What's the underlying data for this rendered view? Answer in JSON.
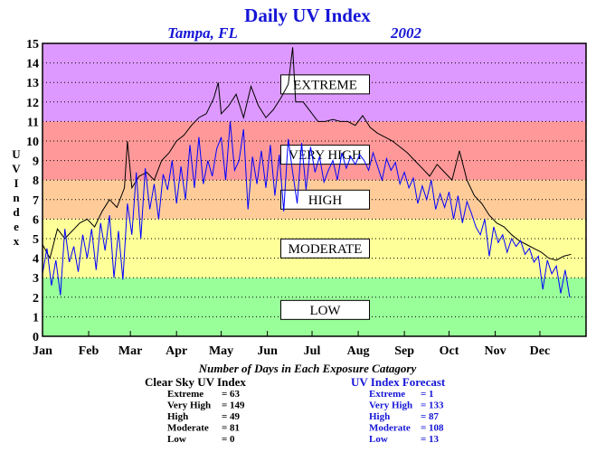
{
  "chart_data": {
    "type": "line",
    "title": "Daily UV Index",
    "subtitle_location": "Tampa, FL",
    "subtitle_year": "2002",
    "ylabel": "UV Index",
    "xlabel": "",
    "ylim": [
      0,
      15
    ],
    "xlim": [
      0,
      365
    ],
    "y_ticks": [
      "0",
      "1",
      "2",
      "3",
      "4",
      "5",
      "6",
      "7",
      "8",
      "9",
      "10",
      "11",
      "12",
      "13",
      "14",
      "15"
    ],
    "x_ticks": [
      "Jan",
      "Feb",
      "Mar",
      "Apr",
      "May",
      "Jun",
      "Jul",
      "Aug",
      "Sep",
      "Oct",
      "Nov",
      "Dec"
    ],
    "month_start_days": [
      0,
      31,
      59,
      90,
      120,
      151,
      181,
      212,
      243,
      273,
      304,
      334
    ],
    "grid": true,
    "bands": [
      {
        "label": "LOW",
        "from": 0,
        "to": 3,
        "color": "#99ff99"
      },
      {
        "label": "MODERATE",
        "from": 3,
        "to": 6,
        "color": "#ffff99"
      },
      {
        "label": "HIGH",
        "from": 6,
        "to": 8,
        "color": "#ffcc99"
      },
      {
        "label": "VERY HIGH",
        "from": 8,
        "to": 11,
        "color": "#ff9999"
      },
      {
        "label": "EXTREME",
        "from": 11,
        "to": 15,
        "color": "#dd99ff"
      }
    ],
    "band_label_y": [
      1.35,
      4.5,
      7.0,
      9.3,
      12.9
    ],
    "series": [
      {
        "name": "Clear Sky UV Index",
        "color": "#000000",
        "x": [
          0,
          5,
          10,
          15,
          20,
          25,
          30,
          35,
          40,
          45,
          50,
          55,
          57,
          60,
          65,
          70,
          75,
          80,
          85,
          90,
          95,
          100,
          105,
          110,
          115,
          118,
          120,
          125,
          130,
          135,
          140,
          145,
          150,
          155,
          160,
          165,
          168,
          170,
          175,
          180,
          185,
          190,
          195,
          200,
          205,
          210,
          215,
          220,
          225,
          230,
          235,
          240,
          245,
          250,
          255,
          260,
          265,
          270,
          275,
          280,
          285,
          290,
          295,
          300,
          305,
          310,
          315,
          320,
          325,
          330,
          335,
          340,
          345,
          350,
          355
        ],
        "y": [
          4.7,
          4.0,
          5.5,
          5.0,
          5.4,
          5.8,
          6.0,
          5.6,
          6.4,
          7.0,
          6.6,
          7.6,
          10.0,
          7.6,
          8.2,
          8.4,
          8.0,
          9.0,
          9.4,
          10.0,
          10.3,
          10.8,
          11.2,
          11.4,
          12.2,
          13.0,
          11.4,
          11.8,
          12.4,
          11.2,
          12.8,
          11.8,
          11.2,
          11.6,
          12.2,
          12.9,
          14.8,
          12.0,
          12.0,
          11.5,
          11.0,
          11.0,
          11.1,
          11.0,
          11.0,
          10.8,
          11.3,
          10.7,
          10.4,
          10.2,
          10.0,
          9.7,
          9.4,
          9.0,
          8.6,
          8.2,
          8.8,
          8.4,
          8.0,
          9.5,
          8.0,
          7.2,
          6.8,
          6.2,
          5.8,
          5.6,
          5.2,
          4.9,
          4.7,
          4.5,
          4.3,
          4.0,
          3.9,
          4.1,
          4.2
        ]
      },
      {
        "name": "UV Index Forecast",
        "color": "#0000ff",
        "x": [
          0,
          3,
          6,
          9,
          12,
          15,
          18,
          21,
          24,
          27,
          30,
          33,
          36,
          39,
          42,
          45,
          48,
          51,
          54,
          57,
          60,
          63,
          66,
          69,
          72,
          75,
          78,
          81,
          84,
          87,
          90,
          93,
          96,
          99,
          102,
          105,
          108,
          111,
          114,
          117,
          120,
          123,
          126,
          129,
          132,
          135,
          138,
          141,
          144,
          147,
          150,
          153,
          156,
          159,
          162,
          165,
          168,
          171,
          174,
          177,
          180,
          183,
          186,
          189,
          192,
          195,
          198,
          201,
          204,
          207,
          210,
          213,
          216,
          219,
          222,
          225,
          228,
          231,
          234,
          237,
          240,
          243,
          246,
          249,
          252,
          255,
          258,
          261,
          264,
          267,
          270,
          273,
          276,
          279,
          282,
          285,
          288,
          291,
          294,
          297,
          300,
          303,
          306,
          309,
          312,
          315,
          318,
          321,
          324,
          327,
          330,
          333,
          336,
          339,
          342,
          345,
          348,
          351,
          354
        ],
        "y": [
          3.2,
          4.5,
          2.6,
          3.9,
          2.1,
          5.5,
          3.8,
          4.6,
          3.3,
          5.2,
          4.0,
          5.5,
          3.4,
          5.8,
          4.4,
          6.2,
          3.0,
          5.4,
          2.9,
          6.8,
          5.2,
          8.4,
          5.0,
          8.6,
          6.5,
          7.8,
          6.0,
          8.3,
          7.5,
          9.0,
          6.8,
          8.7,
          7.0,
          9.8,
          7.6,
          10.2,
          7.8,
          9.0,
          8.2,
          9.6,
          10.2,
          8.0,
          11.0,
          8.5,
          9.0,
          10.6,
          6.5,
          9.2,
          7.8,
          9.5,
          7.6,
          9.8,
          7.2,
          9.3,
          6.4,
          10.1,
          8.4,
          6.8,
          9.9,
          7.5,
          9.7,
          8.4,
          9.2,
          7.9,
          8.5,
          9.0,
          8.0,
          9.4,
          8.6,
          9.2,
          8.8,
          9.3,
          9.0,
          8.5,
          9.4,
          8.7,
          8.0,
          9.1,
          8.5,
          8.9,
          7.8,
          8.4,
          7.6,
          8.1,
          6.8,
          7.7,
          7.0,
          8.0,
          6.5,
          7.3,
          6.6,
          7.4,
          6.0,
          7.2,
          5.8,
          6.9,
          6.3,
          5.6,
          5.2,
          6.0,
          4.1,
          5.6,
          4.8,
          5.2,
          4.3,
          5.0,
          4.6,
          4.9,
          4.2,
          4.5,
          3.8,
          4.1,
          2.4,
          3.9,
          3.2,
          3.6,
          2.2,
          3.4,
          2.0
        ]
      }
    ],
    "exposure_days_title": "Number of Days in Each Exposure Catagory",
    "exposure_days": [
      {
        "title": "Clear Sky UV Index",
        "color": "#000000",
        "rows": [
          {
            "label": "Extreme",
            "value": "63"
          },
          {
            "label": "Very High",
            "value": "149"
          },
          {
            "label": "High",
            "value": "49"
          },
          {
            "label": "Moderate",
            "value": "81"
          },
          {
            "label": "Low",
            "value": "0"
          }
        ]
      },
      {
        "title": "UV Index Forecast",
        "color": "#1515d6",
        "rows": [
          {
            "label": "Extreme",
            "value": "1"
          },
          {
            "label": "Very High",
            "value": "133"
          },
          {
            "label": "High",
            "value": "87"
          },
          {
            "label": "Moderate",
            "value": "108"
          },
          {
            "label": "Low",
            "value": "13"
          }
        ]
      }
    ]
  }
}
